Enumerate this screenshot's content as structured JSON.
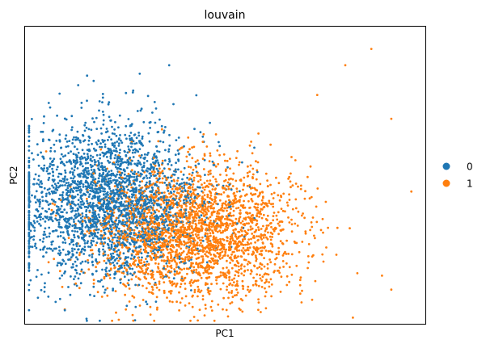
{
  "chart_data": {
    "type": "scatter",
    "title": "louvain",
    "xlabel": "PC1",
    "ylabel": "PC2",
    "xlim": [
      -10,
      10
    ],
    "ylim": [
      -10,
      10
    ],
    "grid": false,
    "axis_ticks": false,
    "legend_placement": "right",
    "series": [
      {
        "name": "0",
        "color": "#1f77b4",
        "center": [
          -5.8,
          -1.8
        ],
        "spread": [
          2.3,
          2.6
        ],
        "n_points": 2600,
        "points": [
          [
            -9.1,
            2.3
          ],
          [
            -6.9,
            6.7
          ],
          [
            -4.6,
            5.7
          ],
          [
            -7.8,
            -3.0
          ],
          [
            -8.3,
            -1.6
          ],
          [
            -3.7,
            -4.6
          ],
          [
            -2.8,
            7.4
          ],
          [
            -5.4,
            -3.5
          ]
        ]
      },
      {
        "name": "1",
        "color": "#ff7f0e",
        "center": [
          -1.5,
          -3.8
        ],
        "spread": [
          2.5,
          2.2
        ],
        "n_points": 2600,
        "points": [
          [
            7.3,
            8.5
          ],
          [
            6.0,
            7.4
          ],
          [
            4.6,
            5.4
          ],
          [
            8.3,
            3.8
          ],
          [
            9.3,
            -1.1
          ],
          [
            8.3,
            -7.7
          ],
          [
            6.6,
            -6.6
          ],
          [
            1.4,
            -7.4
          ],
          [
            -4.8,
            -6.2
          ]
        ]
      }
    ]
  }
}
